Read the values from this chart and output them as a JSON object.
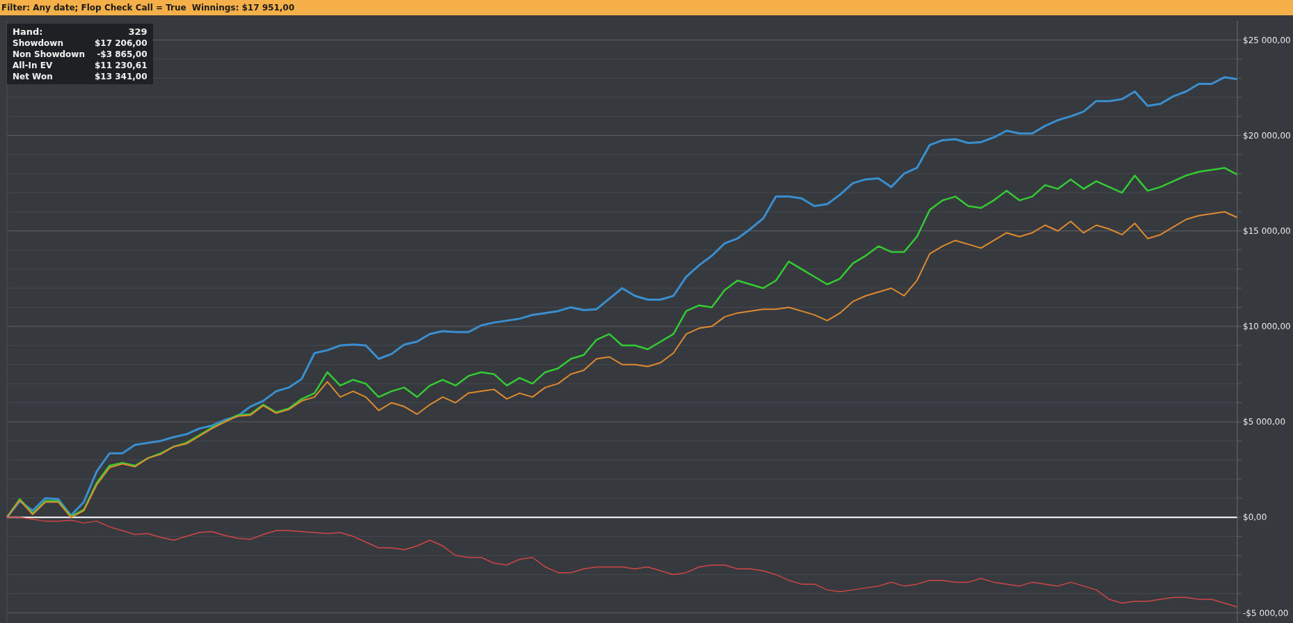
{
  "chart_data": {
    "type": "line",
    "title": "Filter: Any date; Flop Check Call = True",
    "subtitle": "Winnings: $17 951,00",
    "annotations": [
      "Hand:",
      "329",
      "Showdown",
      "$17 206,00",
      "Non Showdown",
      "-$3 865,00",
      "All-In EV",
      "$11 230,61",
      "Net Won",
      "$13 341,00"
    ],
    "categories": [
      null,
      null,
      null,
      null,
      null,
      null,
      null,
      null,
      null,
      null,
      null,
      null,
      null,
      null,
      null,
      null,
      null,
      null,
      null,
      null,
      null,
      null,
      null,
      null,
      null,
      null,
      null,
      null,
      null,
      null,
      null,
      null,
      null,
      null,
      null,
      null,
      null,
      null,
      null,
      null,
      null,
      null,
      null,
      null,
      null,
      null,
      null,
      null,
      null,
      null,
      null,
      null,
      null,
      null,
      null,
      null,
      null,
      null,
      null,
      null,
      null,
      null,
      null,
      null,
      null,
      null,
      null,
      null,
      null,
      null,
      null,
      null,
      null,
      null,
      null,
      null,
      null,
      null,
      null,
      null,
      null,
      null,
      null,
      null,
      null,
      null,
      null,
      null,
      null,
      null,
      null,
      null,
      null,
      null,
      null,
      null,
      null
    ],
    "series": [
      {
        "color": "#3a8fd0",
        "values": [
          0,
          850,
          350,
          1000,
          950,
          100,
          800,
          2400,
          3350,
          3350,
          3800,
          3900,
          4000,
          4200,
          4350,
          4650,
          4800,
          5100,
          5300,
          5800,
          6100,
          6600,
          6800,
          7250,
          8600,
          8750,
          9000,
          9050,
          9000,
          8300,
          8550,
          9050,
          9200,
          9600,
          9750,
          9700,
          9700,
          10050,
          10200,
          10300,
          10400,
          10600,
          10700,
          10800,
          11000,
          10850,
          10900,
          11450,
          12000,
          11600,
          11400,
          11400,
          11600,
          12600,
          13200,
          13700,
          14350,
          14600,
          15100,
          15650,
          16800,
          16800,
          16700,
          16300,
          16400,
          16900,
          17500,
          17700,
          17750,
          17300,
          18000,
          18300,
          19500,
          19750,
          19800,
          19600,
          19650,
          19900,
          20250,
          20100,
          20100,
          20500,
          20800,
          21000,
          21250,
          21800,
          21800,
          21900,
          22300,
          21550,
          21650,
          22050,
          22300,
          22700,
          22700,
          23050,
          22950
        ]
      },
      {
        "color": "#33cc33",
        "values": [
          0,
          950,
          200,
          850,
          850,
          50,
          400,
          1800,
          2700,
          2850,
          2700,
          3100,
          3350,
          3700,
          3900,
          4300,
          4700,
          5000,
          5350,
          5400,
          5900,
          5500,
          5700,
          6200,
          6500,
          7600,
          6900,
          7200,
          7000,
          6300,
          6600,
          6800,
          6300,
          6900,
          7200,
          6900,
          7400,
          7600,
          7500,
          6900,
          7300,
          7000,
          7600,
          7800,
          8300,
          8500,
          9300,
          9600,
          9000,
          9000,
          8800,
          9200,
          9600,
          10800,
          11100,
          11000,
          11900,
          12400,
          12200,
          12000,
          12400,
          13400,
          13000,
          12600,
          12200,
          12500,
          13300,
          13700,
          14200,
          13900,
          13900,
          14700,
          16100,
          16600,
          16800,
          16300,
          16200,
          16600,
          17100,
          16600,
          16800,
          17400,
          17200,
          17700,
          17200,
          17600,
          17300,
          17000,
          17900,
          17100,
          17300,
          17600,
          17900,
          18100,
          18200,
          18300,
          17950
        ]
      },
      {
        "color": "#e08a30",
        "values": [
          0,
          900,
          150,
          800,
          800,
          0,
          350,
          1700,
          2600,
          2800,
          2650,
          3100,
          3300,
          3700,
          3850,
          4250,
          4650,
          5000,
          5300,
          5350,
          5850,
          5450,
          5650,
          6100,
          6300,
          7100,
          6300,
          6600,
          6300,
          5600,
          6000,
          5800,
          5400,
          5900,
          6300,
          6000,
          6500,
          6600,
          6700,
          6200,
          6500,
          6300,
          6800,
          7000,
          7500,
          7700,
          8300,
          8400,
          8000,
          8000,
          7900,
          8100,
          8600,
          9600,
          9900,
          10000,
          10500,
          10700,
          10800,
          10900,
          10900,
          11000,
          10800,
          10600,
          10300,
          10700,
          11300,
          11600,
          11800,
          12000,
          11600,
          12400,
          13800,
          14200,
          14500,
          14300,
          14100,
          14500,
          14900,
          14700,
          14900,
          15300,
          15000,
          15500,
          14900,
          15300,
          15100,
          14800,
          15400,
          14600,
          14800,
          15200,
          15600,
          15800,
          15900,
          16000,
          15700
        ]
      },
      {
        "color": "#d04545",
        "values": [
          0,
          0,
          -100,
          -200,
          -200,
          -150,
          -300,
          -200,
          -500,
          -700,
          -900,
          -850,
          -1050,
          -1200,
          -1000,
          -800,
          -750,
          -950,
          -1100,
          -1150,
          -900,
          -700,
          -700,
          -750,
          -800,
          -850,
          -800,
          -1000,
          -1300,
          -1600,
          -1600,
          -1700,
          -1500,
          -1200,
          -1500,
          -2000,
          -2100,
          -2100,
          -2400,
          -2500,
          -2200,
          -2100,
          -2600,
          -2900,
          -2900,
          -2700,
          -2600,
          -2600,
          -2600,
          -2700,
          -2600,
          -2800,
          -3000,
          -2900,
          -2600,
          -2500,
          -2500,
          -2700,
          -2700,
          -2800,
          -3000,
          -3300,
          -3500,
          -3500,
          -3800,
          -3900,
          -3800,
          -3700,
          -3600,
          -3400,
          -3600,
          -3500,
          -3300,
          -3300,
          -3400,
          -3400,
          -3200,
          -3400,
          -3500,
          -3600,
          -3400,
          -3500,
          -3600,
          -3400,
          -3600,
          -3800,
          -4300,
          -4500,
          -4400,
          -4400,
          -4300,
          -4200,
          -4200,
          -4300,
          -4300,
          -4500,
          -4700
        ]
      }
    ],
    "ylim": [
      -5500,
      26000
    ],
    "yticks": [
      {
        "value": -5000,
        "label": "-$5 000,00"
      },
      {
        "value": -4000,
        "label": null
      },
      {
        "value": -3000,
        "label": null
      },
      {
        "value": -2000,
        "label": null
      },
      {
        "value": -1000,
        "label": null
      },
      {
        "value": 0,
        "label": "$0,00"
      },
      {
        "value": 1000,
        "label": null
      },
      {
        "value": 2000,
        "label": null
      },
      {
        "value": 3000,
        "label": null
      },
      {
        "value": 4000,
        "label": null
      },
      {
        "value": 5000,
        "label": "$5 000,00"
      },
      {
        "value": 6000,
        "label": null
      },
      {
        "value": 7000,
        "label": null
      },
      {
        "value": 8000,
        "label": null
      },
      {
        "value": 9000,
        "label": null
      },
      {
        "value": 10000,
        "label": "$10 000,00"
      },
      {
        "value": 11000,
        "label": null
      },
      {
        "value": 12000,
        "label": null
      },
      {
        "value": 13000,
        "label": null
      },
      {
        "value": 14000,
        "label": null
      },
      {
        "value": 15000,
        "label": "$15 000,00"
      },
      {
        "value": 16000,
        "label": null
      },
      {
        "value": 17000,
        "label": null
      },
      {
        "value": 18000,
        "label": null
      },
      {
        "value": 19000,
        "label": null
      },
      {
        "value": 20000,
        "label": "$20 000,00"
      },
      {
        "value": 21000,
        "label": null
      },
      {
        "value": 22000,
        "label": null
      },
      {
        "value": 23000,
        "label": null
      },
      {
        "value": 24000,
        "label": null
      },
      {
        "value": 25000,
        "label": "$25 000,00"
      }
    ],
    "ref_lines": [
      {
        "axis": "y",
        "value": 0,
        "color": "#ffffff"
      }
    ],
    "grid": true,
    "tick_labels": "y",
    "legend": false
  }
}
